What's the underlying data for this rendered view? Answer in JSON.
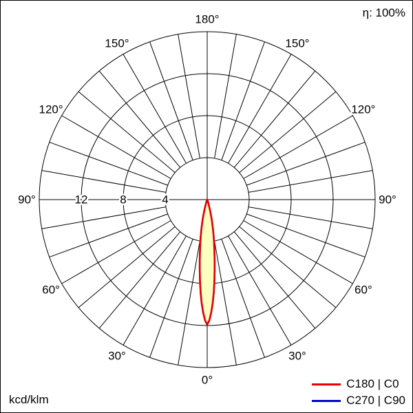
{
  "header": {
    "efficiency": "η: 100%"
  },
  "footer": {
    "unit": "kcd/klm"
  },
  "legend": {
    "items": [
      {
        "label": "C180 | C0",
        "color": "#e60000"
      },
      {
        "label": "C270 | C90",
        "color": "#0000cc"
      }
    ]
  },
  "chart_data": {
    "type": "line",
    "subtype": "polar-photometric",
    "title": "Polar luminous intensity distribution",
    "units": "kcd/klm",
    "efficiency_label": "η: 100%",
    "radial_axis": {
      "ticks": [
        12,
        8,
        4
      ],
      "max": 16,
      "ring_step": 4
    },
    "angular_axis": {
      "labels_deg": [
        0,
        30,
        60,
        90,
        120,
        150,
        180
      ],
      "label_suffix": "°",
      "spoke_step_deg": 10,
      "zero_position": "bottom",
      "grid": true
    },
    "series": [
      {
        "name": "C180 | C0",
        "color": "#e60000",
        "fill": "#ffffc2",
        "points_gamma_deg_vs_value": [
          [
            -25,
            0
          ],
          [
            -22,
            0.05
          ],
          [
            -20,
            0.1
          ],
          [
            -19,
            0.15
          ],
          [
            -18,
            0.25
          ],
          [
            -17,
            0.4
          ],
          [
            -16,
            0.6
          ],
          [
            -15,
            0.9
          ],
          [
            -14,
            1.3
          ],
          [
            -13,
            1.8
          ],
          [
            -12,
            2.3
          ],
          [
            -11,
            2.9
          ],
          [
            -10,
            3.5
          ],
          [
            -9,
            4.2
          ],
          [
            -8,
            4.9
          ],
          [
            -7,
            5.8
          ],
          [
            -6,
            6.8
          ],
          [
            -5,
            7.8
          ],
          [
            -4,
            8.9
          ],
          [
            -3,
            9.9
          ],
          [
            -2,
            10.8
          ],
          [
            -1,
            11.5
          ],
          [
            0,
            11.9
          ],
          [
            1,
            11.5
          ],
          [
            2,
            10.8
          ],
          [
            3,
            9.9
          ],
          [
            4,
            8.9
          ],
          [
            5,
            7.8
          ],
          [
            6,
            6.8
          ],
          [
            7,
            5.8
          ],
          [
            8,
            4.9
          ],
          [
            9,
            4.2
          ],
          [
            10,
            3.5
          ],
          [
            11,
            2.9
          ],
          [
            12,
            2.3
          ],
          [
            13,
            1.8
          ],
          [
            14,
            1.3
          ],
          [
            15,
            0.9
          ],
          [
            16,
            0.6
          ],
          [
            17,
            0.4
          ],
          [
            18,
            0.25
          ],
          [
            19,
            0.15
          ],
          [
            20,
            0.1
          ],
          [
            22,
            0.05
          ],
          [
            25,
            0
          ]
        ]
      },
      {
        "name": "C270 | C90",
        "color": "#0000cc",
        "fill": "#ffffc2",
        "points_gamma_deg_vs_value": [
          [
            -25,
            0
          ],
          [
            -22,
            0.05
          ],
          [
            -20,
            0.1
          ],
          [
            -19,
            0.15
          ],
          [
            -18,
            0.25
          ],
          [
            -17,
            0.4
          ],
          [
            -16,
            0.6
          ],
          [
            -15,
            0.9
          ],
          [
            -14,
            1.3
          ],
          [
            -13,
            1.8
          ],
          [
            -12,
            2.3
          ],
          [
            -11,
            2.9
          ],
          [
            -10,
            3.5
          ],
          [
            -9,
            4.2
          ],
          [
            -8,
            4.9
          ],
          [
            -7,
            5.8
          ],
          [
            -6,
            6.8
          ],
          [
            -5,
            7.8
          ],
          [
            -4,
            8.9
          ],
          [
            -3,
            9.9
          ],
          [
            -2,
            10.8
          ],
          [
            -1,
            11.5
          ],
          [
            0,
            11.9
          ],
          [
            1,
            11.5
          ],
          [
            2,
            10.8
          ],
          [
            3,
            9.9
          ],
          [
            4,
            8.9
          ],
          [
            5,
            7.8
          ],
          [
            6,
            6.8
          ],
          [
            7,
            5.8
          ],
          [
            8,
            4.9
          ],
          [
            9,
            4.2
          ],
          [
            10,
            3.5
          ],
          [
            11,
            2.9
          ],
          [
            12,
            2.3
          ],
          [
            13,
            1.8
          ],
          [
            14,
            1.3
          ],
          [
            15,
            0.9
          ],
          [
            16,
            0.6
          ],
          [
            17,
            0.4
          ],
          [
            18,
            0.25
          ],
          [
            19,
            0.15
          ],
          [
            20,
            0.1
          ],
          [
            22,
            0.05
          ],
          [
            25,
            0
          ]
        ]
      }
    ]
  }
}
